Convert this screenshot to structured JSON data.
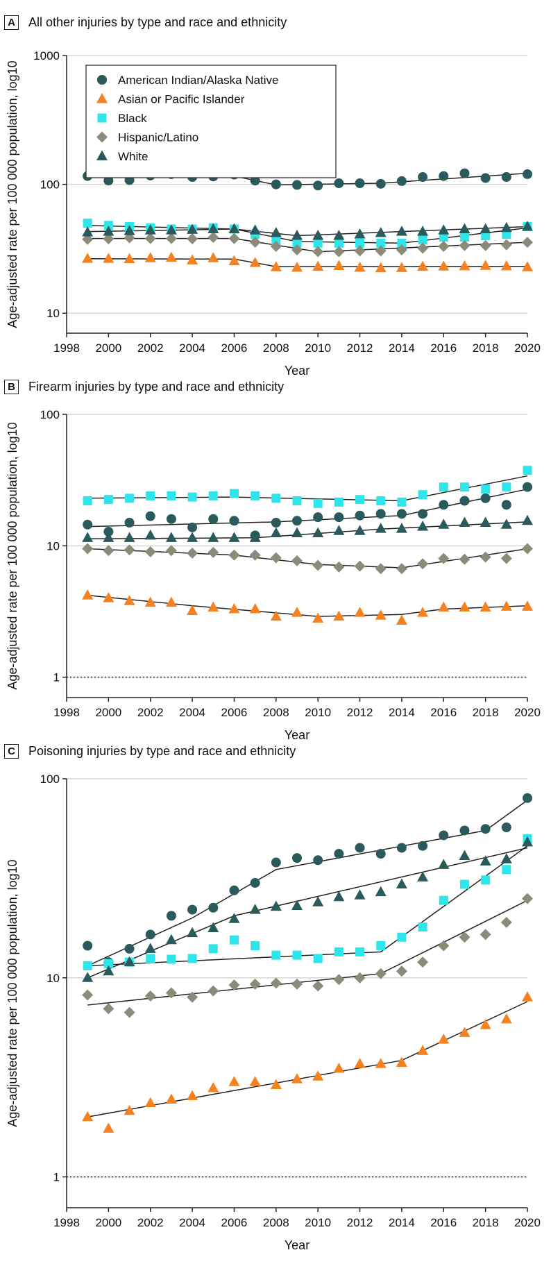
{
  "colors": {
    "American Indian/Alaska Native": "#2b5a5c",
    "Asian or Pacific Islander": "#f58220",
    "Black": "#2ee6ea",
    "Hispanic/Latino": "#8c8a78",
    "White": "#2b5a5c",
    "line": "#222222",
    "grid": "#d6d6d6"
  },
  "legend": [
    {
      "name": "American Indian/Alaska Native",
      "marker": "circle"
    },
    {
      "name": "Asian or Pacific Islander",
      "marker": "triangle"
    },
    {
      "name": "Black",
      "marker": "square"
    },
    {
      "name": "Hispanic/Latino",
      "marker": "diamond"
    },
    {
      "name": "White",
      "marker": "triangle"
    }
  ],
  "chart_data": [
    {
      "panel": "A",
      "title": "All other injuries by type and race and ethnicity",
      "type": "scatter",
      "xlabel": "Year",
      "ylabel": "Age-adjusted rate per 100 000 population, log10",
      "yscale": "log10",
      "xlim": [
        1998,
        2020
      ],
      "ylim": [
        7,
        1000
      ],
      "xticks": [
        "1998",
        "2000",
        "2002",
        "2004",
        "2006",
        "2008",
        "2010",
        "2012",
        "2014",
        "2016",
        "2018",
        "2020"
      ],
      "yticks": [
        {
          "value": 10,
          "label": "10"
        },
        {
          "value": 100,
          "label": "100"
        },
        {
          "value": 1000,
          "label": "1000"
        }
      ],
      "dotted_reference": null,
      "legend_position": "top-left",
      "x": [
        1999,
        2000,
        2001,
        2002,
        2003,
        2004,
        2005,
        2006,
        2007,
        2008,
        2009,
        2010,
        2011,
        2012,
        2013,
        2014,
        2015,
        2016,
        2017,
        2018,
        2019,
        2020
      ],
      "series": [
        {
          "name": "American Indian/Alaska Native",
          "marker": "circle",
          "values": [
            116,
            107,
            108,
            117,
            120,
            114,
            115,
            119,
            107,
            100,
            99,
            98,
            102,
            102,
            101,
            106,
            114,
            116,
            122,
            112,
            114,
            120
          ],
          "trend": [
            [
              1999,
              113
            ],
            [
              2006,
              116
            ],
            [
              2008,
              99
            ],
            [
              2013,
              102
            ],
            [
              2020,
              122
            ]
          ]
        },
        {
          "name": "Asian or Pacific Islander",
          "marker": "triangle",
          "values": [
            26.5,
            26.5,
            26.4,
            26.8,
            27.0,
            25.8,
            26.8,
            25.4,
            24.6,
            22.8,
            22.6,
            23.0,
            23.3,
            22.6,
            22.4,
            22.5,
            23.0,
            23.1,
            23.2,
            23.4,
            23.2,
            22.8
          ],
          "trend": [
            [
              1999,
              26.5
            ],
            [
              2006,
              26.3
            ],
            [
              2008,
              23.0
            ],
            [
              2020,
              23.1
            ]
          ]
        },
        {
          "name": "Black",
          "marker": "square",
          "values": [
            50,
            48,
            47,
            46,
            45,
            45,
            46,
            45,
            41,
            36,
            35,
            35,
            35,
            35,
            35,
            35,
            37,
            39,
            39,
            40,
            41,
            47
          ],
          "trend": [
            [
              1999,
              48
            ],
            [
              2006,
              45
            ],
            [
              2009,
              36
            ],
            [
              2014,
              35
            ],
            [
              2020,
              46
            ]
          ]
        },
        {
          "name": "Hispanic/Latino",
          "marker": "diamond",
          "values": [
            37.5,
            37.8,
            38.5,
            38.0,
            38.0,
            37.8,
            38.8,
            38.0,
            35.6,
            33.0,
            31.0,
            30.0,
            30.0,
            30.5,
            30.5,
            31.0,
            32.0,
            33.0,
            33.5,
            33.5,
            34.0,
            35.5
          ],
          "trend": [
            [
              1999,
              38
            ],
            [
              2006,
              38
            ],
            [
              2010,
              30
            ],
            [
              2020,
              35.5
            ]
          ]
        },
        {
          "name": "White",
          "marker": "triangle",
          "values": [
            42.5,
            43,
            43.5,
            44,
            44,
            44.5,
            45,
            45,
            44,
            42,
            40,
            40,
            40,
            41,
            42,
            43,
            43,
            44,
            45,
            45,
            46,
            47
          ],
          "trend": [
            [
              1999,
              43
            ],
            [
              2006,
              45
            ],
            [
              2009,
              40
            ],
            [
              2020,
              47
            ]
          ]
        }
      ]
    },
    {
      "panel": "B",
      "title": "Firearm injuries by type and race and ethnicity",
      "type": "scatter",
      "xlabel": "Year",
      "ylabel": "Age-adjusted rate per 100 000 population, log10",
      "yscale": "log10",
      "xlim": [
        1998,
        2020
      ],
      "ylim": [
        0.7,
        100
      ],
      "xticks": [
        "1998",
        "2000",
        "2002",
        "2004",
        "2006",
        "2008",
        "2010",
        "2012",
        "2014",
        "2016",
        "2018",
        "2020"
      ],
      "yticks": [
        {
          "value": 1,
          "label": "1"
        },
        {
          "value": 10,
          "label": "10"
        },
        {
          "value": 100,
          "label": "100"
        }
      ],
      "dotted_reference": 1,
      "legend_position": "none",
      "x": [
        1999,
        2000,
        2001,
        2002,
        2003,
        2004,
        2005,
        2006,
        2007,
        2008,
        2009,
        2010,
        2011,
        2012,
        2013,
        2014,
        2015,
        2016,
        2017,
        2018,
        2019,
        2020
      ],
      "series": [
        {
          "name": "American Indian/Alaska Native",
          "marker": "circle",
          "values": [
            14.5,
            12.8,
            15.0,
            16.8,
            16.0,
            13.8,
            16.0,
            15.5,
            12.0,
            15.0,
            15.5,
            16.5,
            16.5,
            17.0,
            17.5,
            17.5,
            17.5,
            20.5,
            22.0,
            23.0,
            20.5,
            28.0
          ],
          "trend": [
            [
              1999,
              14.0
            ],
            [
              2008,
              15.2
            ],
            [
              2014,
              17.0
            ],
            [
              2020,
              27.0
            ]
          ]
        },
        {
          "name": "Asian or Pacific Islander",
          "marker": "triangle",
          "values": [
            4.2,
            4.0,
            3.8,
            3.7,
            3.7,
            3.2,
            3.4,
            3.3,
            3.3,
            2.9,
            3.1,
            2.8,
            2.9,
            3.1,
            2.95,
            2.7,
            3.1,
            3.4,
            3.4,
            3.4,
            3.45,
            3.45
          ],
          "trend": [
            [
              1999,
              4.2
            ],
            [
              2004,
              3.5
            ],
            [
              2010,
              2.9
            ],
            [
              2014,
              3.0
            ],
            [
              2016,
              3.3
            ],
            [
              2020,
              3.5
            ]
          ]
        },
        {
          "name": "Black",
          "marker": "square",
          "values": [
            22,
            22.5,
            23,
            24,
            24,
            23.5,
            24,
            25,
            24,
            23,
            22,
            21,
            21.5,
            22.5,
            22,
            21.5,
            24.5,
            28,
            28,
            27,
            28,
            37.5
          ],
          "trend": [
            [
              1999,
              23
            ],
            [
              2006,
              23.5
            ],
            [
              2014,
              22
            ],
            [
              2020,
              34
            ]
          ]
        },
        {
          "name": "Hispanic/Latino",
          "marker": "diamond",
          "values": [
            9.5,
            9.2,
            9.3,
            9.0,
            9.2,
            8.8,
            8.9,
            8.5,
            8.5,
            8.1,
            7.7,
            7.1,
            6.9,
            7.0,
            6.7,
            6.7,
            7.3,
            8.0,
            7.9,
            8.2,
            8.0,
            9.5
          ],
          "trend": [
            [
              1999,
              9.5
            ],
            [
              2006,
              8.5
            ],
            [
              2010,
              7.2
            ],
            [
              2014,
              6.8
            ],
            [
              2020,
              9.5
            ]
          ]
        },
        {
          "name": "White",
          "marker": "triangle",
          "values": [
            11.5,
            11.5,
            11.5,
            12.0,
            11.5,
            11.5,
            11.5,
            11.5,
            11.5,
            12.5,
            12.5,
            12.5,
            13.0,
            13.0,
            13.5,
            13.5,
            14.0,
            14.5,
            15.0,
            15.0,
            14.5,
            15.5
          ],
          "trend": [
            [
              1999,
              11.3
            ],
            [
              2007,
              11.5
            ],
            [
              2013,
              13.4
            ],
            [
              2020,
              15.2
            ]
          ]
        }
      ]
    },
    {
      "panel": "C",
      "title": "Poisoning injuries by type and race and ethnicity",
      "type": "scatter",
      "xlabel": "Year",
      "ylabel": "Age-adjusted rate per 100 000 population, log10",
      "yscale": "log10",
      "xlim": [
        1998,
        2020
      ],
      "ylim": [
        0.7,
        100
      ],
      "xticks": [
        "1998",
        "2000",
        "2002",
        "2004",
        "2006",
        "2008",
        "2010",
        "2012",
        "2014",
        "2016",
        "2018",
        "2020"
      ],
      "yticks": [
        {
          "value": 1,
          "label": "1"
        },
        {
          "value": 10,
          "label": "10"
        },
        {
          "value": 100,
          "label": "100"
        }
      ],
      "dotted_reference": 1,
      "legend_position": "none",
      "x": [
        1999,
        2000,
        2001,
        2002,
        2003,
        2004,
        2005,
        2006,
        2007,
        2008,
        2009,
        2010,
        2011,
        2012,
        2013,
        2014,
        2015,
        2016,
        2017,
        2018,
        2019,
        2020
      ],
      "series": [
        {
          "name": "American Indian/Alaska Native",
          "marker": "circle",
          "values": [
            14.5,
            12.0,
            14.0,
            16.5,
            20.5,
            22,
            22.5,
            27.5,
            30,
            38,
            40,
            39,
            42,
            45,
            42,
            45,
            46,
            52,
            55,
            56,
            57,
            80
          ],
          "trend": [
            [
              1999,
              11.5
            ],
            [
              2004,
              20
            ],
            [
              2008,
              35
            ],
            [
              2018,
              55
            ],
            [
              2020,
              78
            ]
          ]
        },
        {
          "name": "Asian or Pacific Islander",
          "marker": "triangle",
          "values": [
            2.0,
            1.75,
            2.15,
            2.35,
            2.45,
            2.55,
            2.8,
            3.0,
            3.0,
            2.9,
            3.1,
            3.2,
            3.5,
            3.7,
            3.7,
            3.75,
            4.3,
            4.9,
            5.3,
            5.8,
            6.2,
            8.0
          ],
          "trend": [
            [
              1999,
              2.0
            ],
            [
              2014,
              3.85
            ],
            [
              2020,
              7.6
            ]
          ]
        },
        {
          "name": "Black",
          "marker": "square",
          "values": [
            11.5,
            11.8,
            12.0,
            12.5,
            12.4,
            12.5,
            14,
            15.5,
            14.5,
            13.0,
            13.0,
            12.5,
            13.5,
            13.5,
            14.5,
            16.0,
            18.0,
            24.5,
            29.5,
            31,
            35,
            50
          ],
          "trend": [
            [
              1999,
              11.5
            ],
            [
              2013,
              13.5
            ],
            [
              2020,
              46
            ]
          ]
        },
        {
          "name": "Hispanic/Latino",
          "marker": "diamond",
          "values": [
            8.2,
            7.0,
            6.7,
            8.1,
            8.4,
            8.0,
            8.6,
            9.2,
            9.3,
            9.4,
            9.3,
            9.1,
            9.8,
            10.0,
            10.5,
            10.8,
            12.0,
            14.5,
            16.0,
            16.5,
            19.0,
            25.0
          ],
          "trend": [
            [
              1999,
              7.3
            ],
            [
              2013,
              10.5
            ],
            [
              2020,
              24.5
            ]
          ]
        },
        {
          "name": "White",
          "marker": "triangle",
          "values": [
            10.0,
            10.8,
            12.0,
            14.0,
            15.5,
            16.8,
            17.8,
            19.8,
            22,
            22.8,
            23,
            24,
            25.5,
            26,
            27,
            29.5,
            32,
            37,
            41,
            38.5,
            39.5,
            48
          ],
          "trend": [
            [
              1999,
              10.0
            ],
            [
              2006,
              20.5
            ],
            [
              2020,
              45
            ]
          ]
        }
      ]
    }
  ]
}
